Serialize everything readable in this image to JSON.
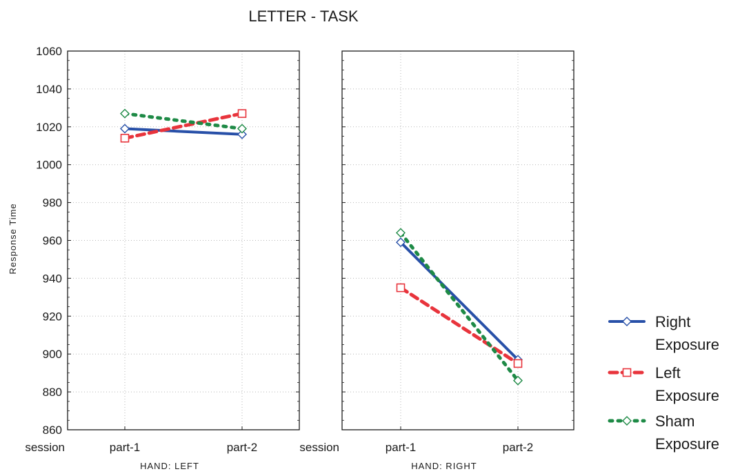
{
  "chart_data": {
    "type": "line",
    "title": "LETTER - TASK",
    "ylabel": "Response Time",
    "ylim": [
      860,
      1060
    ],
    "yticks": [
      860,
      880,
      900,
      920,
      940,
      960,
      980,
      1000,
      1020,
      1040,
      1060
    ],
    "x_axis_name": "session",
    "categories": [
      "part-1",
      "part-2"
    ],
    "grid": true,
    "legend_position": "right",
    "panels": [
      {
        "label": "HAND: LEFT",
        "series": [
          {
            "name": "Right Exposure",
            "values": [
              1019,
              1016
            ]
          },
          {
            "name": "Left Exposure",
            "values": [
              1014,
              1027
            ]
          },
          {
            "name": "Sham Exposure",
            "values": [
              1027,
              1019
            ]
          }
        ]
      },
      {
        "label": "HAND: RIGHT",
        "series": [
          {
            "name": "Right Exposure",
            "values": [
              959,
              897
            ]
          },
          {
            "name": "Left Exposure",
            "values": [
              935,
              895
            ]
          },
          {
            "name": "Sham Exposure",
            "values": [
              964,
              886
            ]
          }
        ]
      }
    ],
    "series_styles": [
      {
        "name": "Right Exposure",
        "color": "#2850a8",
        "line": "solid",
        "marker": "diamond"
      },
      {
        "name": "Left Exposure",
        "color": "#e8343c",
        "line": "dashed",
        "marker": "square"
      },
      {
        "name": "Sham Exposure",
        "color": "#1e8a46",
        "line": "dotted",
        "marker": "diamond"
      }
    ],
    "legend": [
      {
        "line1": "Right",
        "line2": "Exposure"
      },
      {
        "line1": "Left",
        "line2": "Exposure"
      },
      {
        "line1": "Sham",
        "line2": "Exposure"
      }
    ]
  }
}
